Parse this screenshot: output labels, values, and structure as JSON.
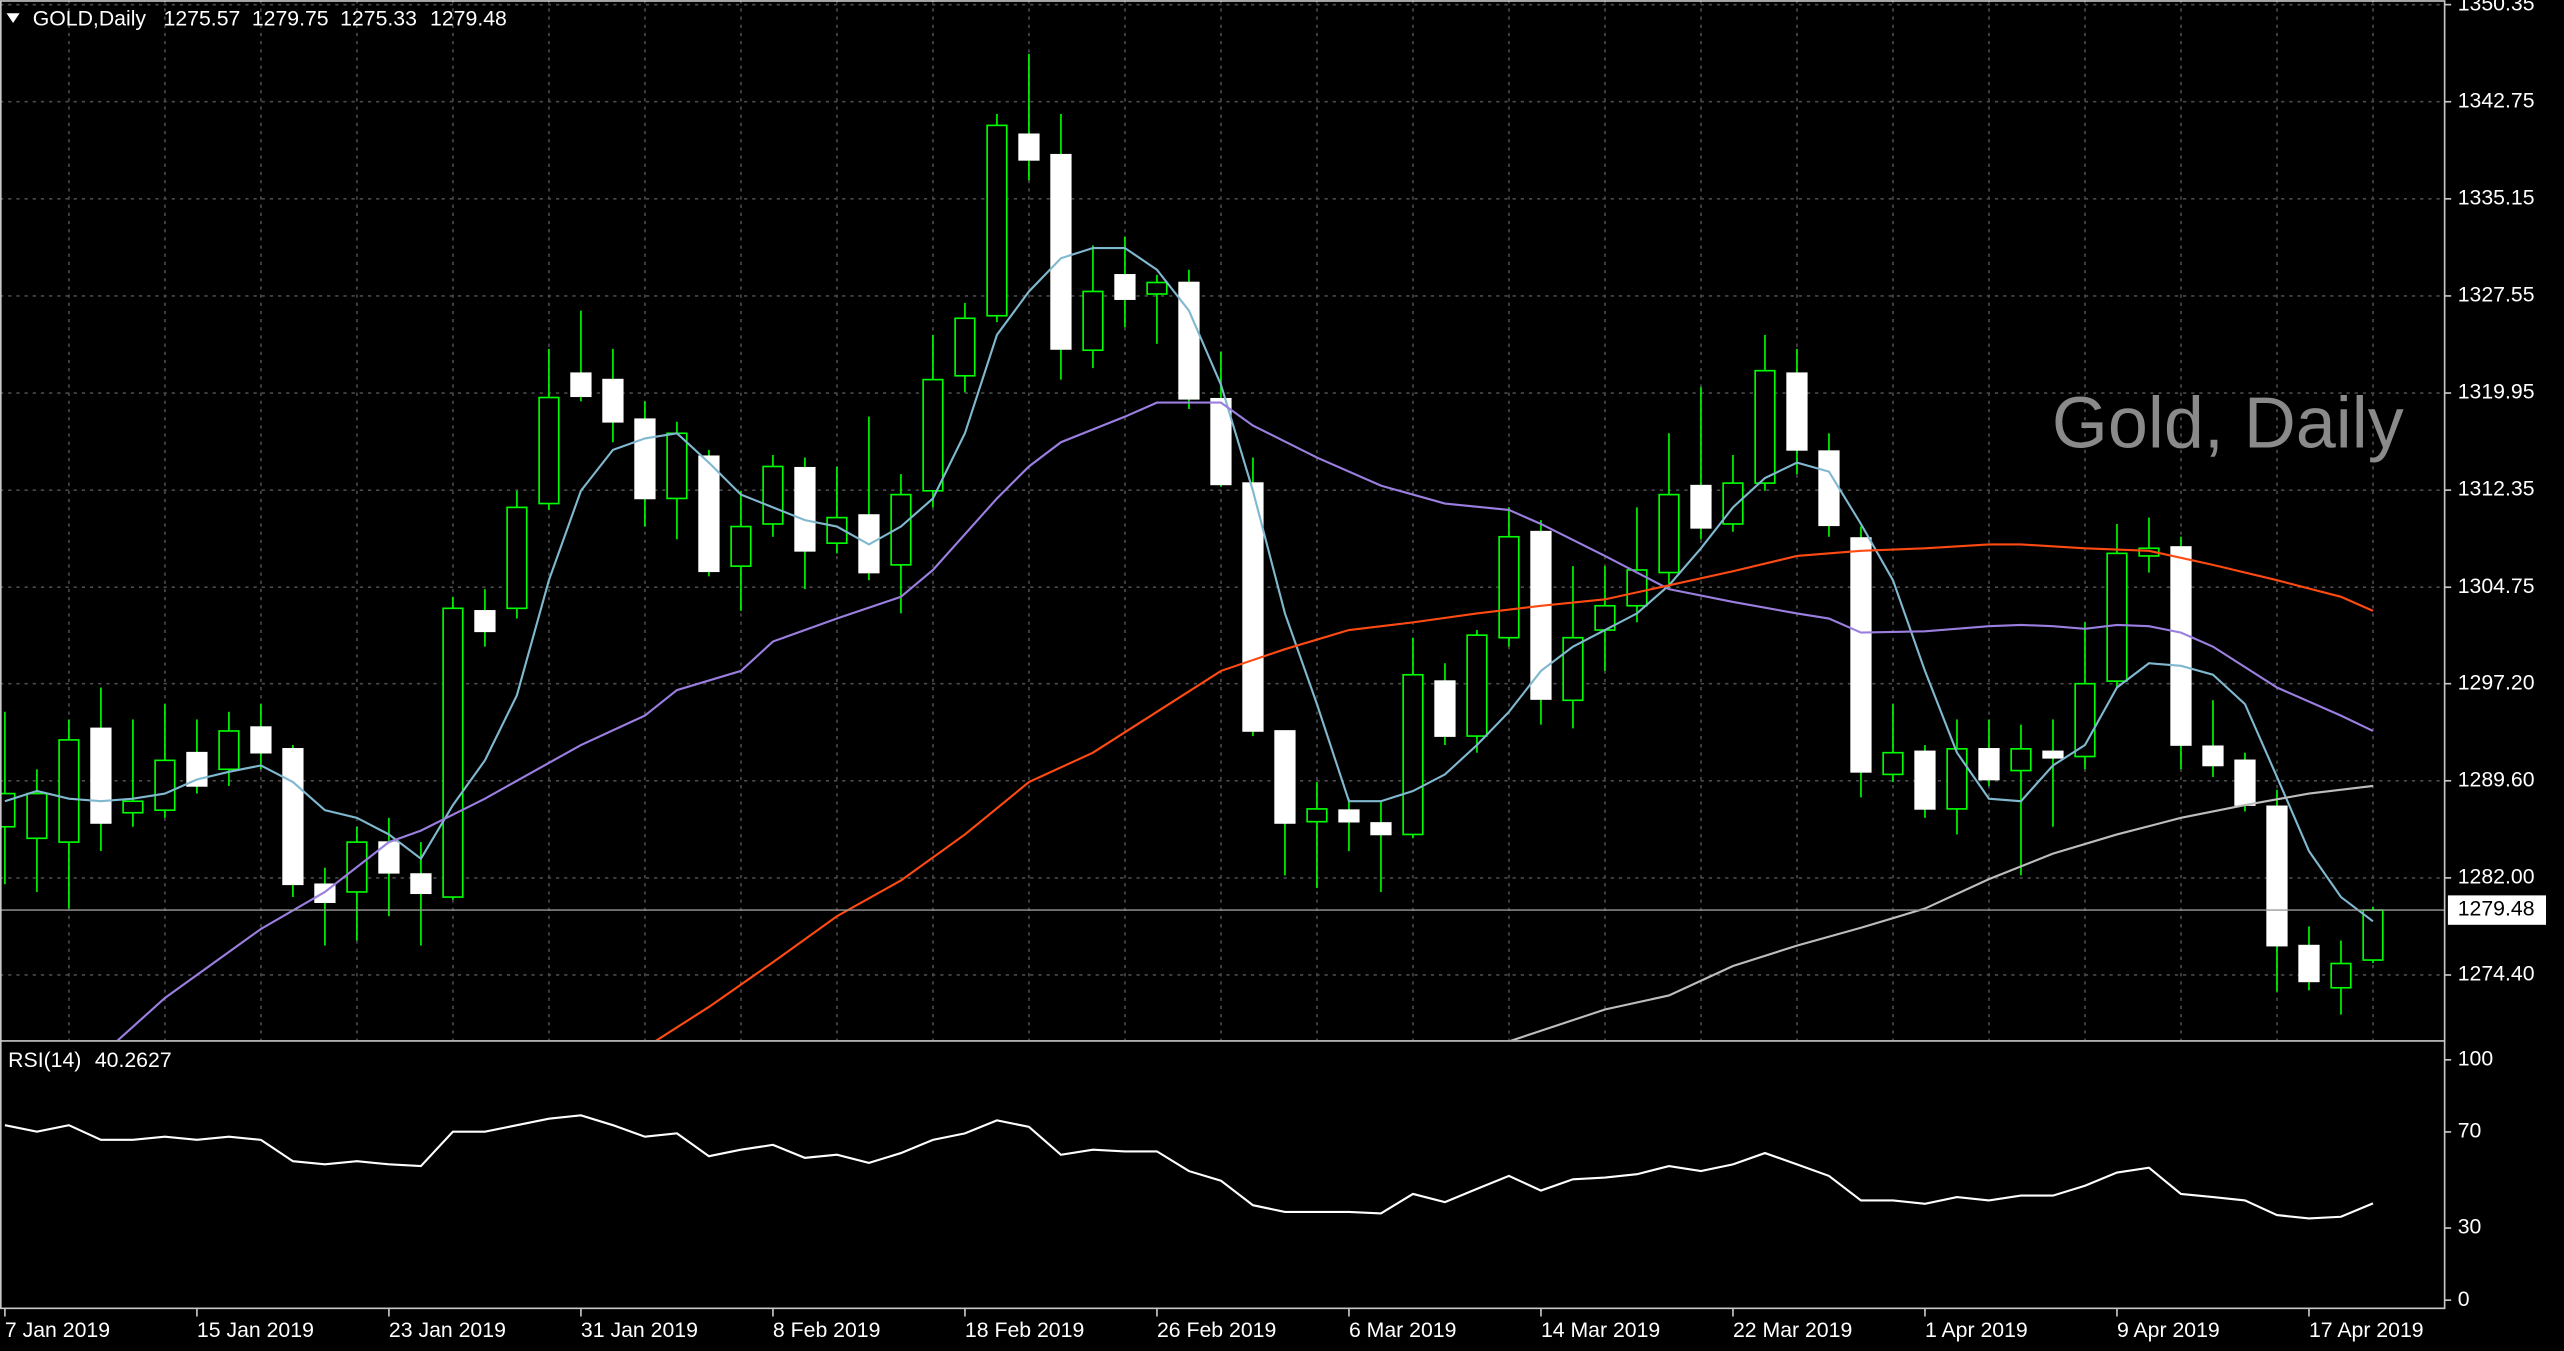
{
  "chart_data": [
    {
      "type": "candlestick",
      "symbol": "GOLD,Daily",
      "watermark": "Gold, Daily",
      "categories": [
        "7 Jan 2019",
        null,
        null,
        null,
        null,
        null,
        "15 Jan 2019",
        null,
        null,
        null,
        null,
        null,
        "23 Jan 2019",
        null,
        null,
        null,
        null,
        null,
        "31 Jan 2019",
        null,
        null,
        null,
        null,
        null,
        "8 Feb 2019",
        null,
        null,
        null,
        null,
        null,
        "18 Feb 2019",
        null,
        null,
        null,
        null,
        null,
        "26 Feb 2019",
        null,
        null,
        null,
        null,
        null,
        "6 Mar 2019",
        null,
        null,
        null,
        null,
        null,
        "14 Mar 2019",
        null,
        null,
        null,
        null,
        null,
        "22 Mar 2019",
        null,
        null,
        null,
        null,
        null,
        "1 Apr 2019",
        null,
        null,
        null,
        null,
        null,
        "9 Apr 2019",
        null,
        null,
        null,
        null,
        null,
        "17 Apr 2019",
        null,
        null
      ],
      "open": [
        1286.0,
        1285.1,
        1284.8,
        1293.7,
        1287.1,
        1287.3,
        1291.8,
        1290.5,
        1293.8,
        1292.1,
        1281.5,
        1280.9,
        1284.8,
        1282.3,
        1280.5,
        1302.9,
        1303.1,
        1311.3,
        1321.5,
        1321.0,
        1317.9,
        1311.7,
        1315.0,
        1306.4,
        1309.7,
        1314.1,
        1308.2,
        1310.4,
        1306.5,
        1312.3,
        1321.3,
        1326.0,
        1340.2,
        1338.6,
        1323.3,
        1329.2,
        1327.7,
        1328.6,
        1319.5,
        1312.9,
        1293.5,
        1286.4,
        1287.3,
        1286.3,
        1285.4,
        1297.4,
        1293.1,
        1300.8,
        1309.1,
        1295.9,
        1301.4,
        1303.3,
        1305.9,
        1312.7,
        1309.7,
        1312.9,
        1321.5,
        1315.4,
        1308.6,
        1290.1,
        1291.9,
        1287.4,
        1292.1,
        1290.4,
        1291.9,
        1291.5,
        1297.4,
        1307.2,
        1307.9,
        1292.3,
        1291.2,
        1287.6,
        1276.7,
        1273.4,
        1275.57
      ],
      "high": [
        1295.0,
        1290.5,
        1294.4,
        1296.9,
        1294.4,
        1295.6,
        1294.4,
        1295.0,
        1295.6,
        1292.4,
        1282.8,
        1286.0,
        1286.7,
        1284.8,
        1304.0,
        1304.6,
        1312.3,
        1323.4,
        1326.4,
        1323.4,
        1319.3,
        1317.7,
        1315.5,
        1312.3,
        1315.1,
        1314.9,
        1314.2,
        1318.1,
        1313.6,
        1324.5,
        1327.0,
        1341.8,
        1346.5,
        1341.8,
        1331.5,
        1332.2,
        1329.2,
        1329.6,
        1323.2,
        1314.9,
        1293.5,
        1289.5,
        1288.2,
        1288.0,
        1300.8,
        1298.8,
        1301.4,
        1311.0,
        1310.0,
        1306.4,
        1306.4,
        1311.0,
        1316.8,
        1320.4,
        1315.1,
        1324.5,
        1323.4,
        1316.8,
        1309.5,
        1295.6,
        1292.4,
        1294.4,
        1294.4,
        1294.0,
        1294.4,
        1302.0,
        1309.7,
        1310.2,
        1308.7,
        1295.9,
        1291.8,
        1288.9,
        1278.2,
        1277.1,
        1279.75
      ],
      "low": [
        1281.5,
        1280.9,
        1279.6,
        1284.1,
        1286.0,
        1286.7,
        1288.6,
        1289.2,
        1290.5,
        1280.5,
        1276.7,
        1277.1,
        1279.0,
        1276.7,
        1280.3,
        1300.1,
        1302.3,
        1310.8,
        1319.3,
        1316.1,
        1309.5,
        1308.5,
        1305.6,
        1302.9,
        1308.7,
        1304.6,
        1307.4,
        1305.3,
        1302.7,
        1311.0,
        1320.0,
        1325.5,
        1336.6,
        1321.0,
        1321.9,
        1325.1,
        1323.8,
        1318.7,
        1312.6,
        1293.1,
        1282.2,
        1281.2,
        1284.1,
        1280.9,
        1285.1,
        1292.4,
        1291.8,
        1300.1,
        1294.0,
        1293.7,
        1298.2,
        1302.0,
        1304.6,
        1308.5,
        1309.1,
        1312.3,
        1313.6,
        1308.7,
        1288.3,
        1289.5,
        1286.7,
        1285.4,
        1289.2,
        1282.2,
        1286.0,
        1290.5,
        1296.9,
        1305.9,
        1290.5,
        1289.9,
        1287.2,
        1273.1,
        1273.2,
        1271.3,
        1275.33
      ],
      "close": [
        1288.6,
        1288.6,
        1292.8,
        1286.3,
        1288.0,
        1291.2,
        1289.2,
        1293.5,
        1291.8,
        1281.5,
        1280.1,
        1284.8,
        1282.4,
        1280.8,
        1303.1,
        1301.3,
        1311.0,
        1319.6,
        1319.7,
        1317.7,
        1311.7,
        1316.8,
        1306.0,
        1309.5,
        1314.2,
        1307.6,
        1310.2,
        1305.9,
        1312.0,
        1321.0,
        1325.8,
        1340.9,
        1338.2,
        1323.4,
        1327.9,
        1327.3,
        1328.6,
        1319.5,
        1312.8,
        1293.5,
        1286.3,
        1287.4,
        1286.4,
        1285.4,
        1297.9,
        1293.1,
        1301.0,
        1308.7,
        1296.0,
        1300.8,
        1303.3,
        1306.1,
        1312.0,
        1309.4,
        1312.9,
        1321.7,
        1315.5,
        1309.6,
        1290.3,
        1291.8,
        1287.4,
        1292.1,
        1289.7,
        1292.1,
        1291.4,
        1297.2,
        1307.4,
        1307.8,
        1292.4,
        1290.8,
        1287.7,
        1276.7,
        1273.9,
        1275.3,
        1279.48
      ],
      "up_color": "#000000",
      "down_color": "#ffffff",
      "wick_color": "#00ff00",
      "series": [
        {
          "color": "#7fb8cf",
          "x": [
            0,
            1,
            2,
            3,
            4,
            5,
            6,
            7,
            8,
            9,
            10,
            11,
            12,
            13,
            14,
            15,
            16,
            17,
            18,
            19,
            20,
            21,
            22,
            23,
            24,
            25,
            26,
            27,
            28,
            29,
            30,
            31,
            32,
            33,
            34,
            35,
            36,
            37,
            38,
            39,
            40,
            41,
            42,
            43,
            44,
            45,
            46,
            47,
            48,
            49,
            50,
            51,
            52,
            53,
            54,
            55,
            56,
            57,
            58,
            59,
            60,
            61,
            62,
            63,
            64,
            65,
            66,
            67,
            68,
            69,
            70,
            71,
            72,
            73,
            74
          ],
          "values": [
            1288.0,
            1288.8,
            1288.2,
            1288.0,
            1288.2,
            1288.6,
            1289.7,
            1290.3,
            1290.8,
            1289.5,
            1287.3,
            1286.7,
            1285.4,
            1283.5,
            1287.7,
            1291.2,
            1296.3,
            1305.3,
            1312.3,
            1315.5,
            1316.4,
            1316.8,
            1314.5,
            1312.0,
            1311.0,
            1310.0,
            1309.5,
            1308.1,
            1309.5,
            1311.7,
            1316.8,
            1324.5,
            1327.9,
            1330.5,
            1331.3,
            1331.3,
            1329.6,
            1326.4,
            1320.6,
            1312.3,
            1302.7,
            1295.6,
            1288.0,
            1288.0,
            1288.8,
            1290.1,
            1292.4,
            1295.0,
            1298.2,
            1300.1,
            1301.4,
            1302.7,
            1304.9,
            1307.8,
            1311.0,
            1313.3,
            1314.5,
            1313.8,
            1309.7,
            1305.3,
            1298.2,
            1291.8,
            1288.2,
            1288.0,
            1290.8,
            1292.4,
            1296.9,
            1298.8,
            1298.6,
            1297.9,
            1295.6,
            1289.9,
            1284.1,
            1280.5,
            1278.6
          ]
        },
        {
          "color": "#9a7fe0",
          "x": [
            3,
            5,
            8,
            10,
            12,
            13,
            15,
            18,
            20,
            21,
            23,
            24,
            26,
            28,
            29,
            31,
            32,
            33,
            35,
            36,
            38,
            39,
            41,
            43,
            45,
            47,
            48,
            50,
            52,
            54,
            56,
            57,
            58,
            60,
            62,
            63,
            64,
            65,
            66,
            67,
            68,
            69,
            71,
            73,
            74
          ],
          "values": [
            1268.1,
            1272.6,
            1278.0,
            1280.9,
            1284.8,
            1285.7,
            1288.2,
            1292.4,
            1294.7,
            1296.7,
            1298.2,
            1300.5,
            1302.3,
            1304.0,
            1306.1,
            1311.7,
            1314.2,
            1316.1,
            1318.1,
            1319.2,
            1319.2,
            1317.4,
            1314.9,
            1312.7,
            1311.3,
            1310.8,
            1309.7,
            1307.2,
            1304.6,
            1303.6,
            1302.7,
            1302.3,
            1301.2,
            1301.3,
            1301.7,
            1301.8,
            1301.7,
            1301.5,
            1301.8,
            1301.7,
            1301.2,
            1300.1,
            1296.9,
            1294.7,
            1293.5
          ]
        },
        {
          "color": "#ff4a12",
          "x": [
            20,
            22,
            24,
            26,
            28,
            30,
            32,
            34,
            36,
            38,
            40,
            42,
            44,
            46,
            48,
            50,
            52,
            54,
            56,
            58,
            60,
            62,
            63,
            65,
            67,
            69,
            71,
            73,
            74
          ],
          "values": [
            1268.7,
            1271.9,
            1275.4,
            1279.0,
            1281.8,
            1285.4,
            1289.5,
            1291.8,
            1295.0,
            1298.2,
            1299.9,
            1301.4,
            1302.0,
            1302.7,
            1303.3,
            1303.8,
            1304.9,
            1306.0,
            1307.2,
            1307.6,
            1307.8,
            1308.1,
            1308.1,
            1307.8,
            1307.6,
            1306.5,
            1305.3,
            1304.0,
            1302.9
          ]
        },
        {
          "color": "#bdbdbd",
          "x": [
            47,
            50,
            52,
            54,
            56,
            58,
            60,
            62,
            64,
            66,
            68,
            70,
            72,
            74
          ],
          "values": [
            1269.2,
            1271.7,
            1272.8,
            1275.1,
            1276.7,
            1278.1,
            1279.6,
            1281.9,
            1283.9,
            1285.4,
            1286.7,
            1287.7,
            1288.6,
            1289.2
          ]
        }
      ],
      "ylim": [
        1269.3,
        1350.7
      ],
      "yticks": [
        1350.35,
        1342.75,
        1335.15,
        1327.55,
        1319.95,
        1312.35,
        1304.75,
        {
          "value": 1297.2,
          "label": "1297.20"
        },
        {
          "value": 1289.6,
          "label": "1289.60"
        },
        {
          "value": 1282,
          "label": "1282.00"
        },
        {
          "value": 1274.4,
          "label": "1274.40"
        }
      ],
      "grid": true
    },
    {
      "type": "line",
      "title": "RSI(14)",
      "color": "#ffffff",
      "values": [
        72.8,
        70.1,
        72.8,
        66.7,
        66.7,
        68.0,
        66.7,
        68.0,
        66.7,
        57.8,
        56.5,
        57.8,
        56.5,
        55.8,
        70.1,
        70.1,
        72.8,
        75.5,
        76.9,
        72.8,
        68.0,
        69.4,
        59.9,
        62.6,
        64.6,
        59.2,
        60.5,
        57.1,
        61.2,
        66.7,
        69.4,
        74.8,
        72.1,
        60.5,
        62.6,
        61.9,
        61.9,
        53.7,
        49.7,
        39.5,
        36.7,
        36.7,
        36.7,
        36.1,
        44.2,
        40.8,
        46.3,
        51.7,
        45.6,
        50.3,
        51.0,
        52.4,
        55.8,
        53.7,
        56.5,
        61.2,
        56.5,
        51.7,
        41.5,
        41.5,
        40.1,
        42.9,
        41.5,
        43.5,
        43.5,
        47.6,
        53.1,
        55.1,
        44.2,
        42.9,
        41.5,
        35.4,
        34.0,
        34.7,
        40.2627
      ],
      "ylim": [
        -3.4,
        107.5
      ],
      "yticks": [
        100,
        70,
        30,
        0
      ]
    }
  ]
}
